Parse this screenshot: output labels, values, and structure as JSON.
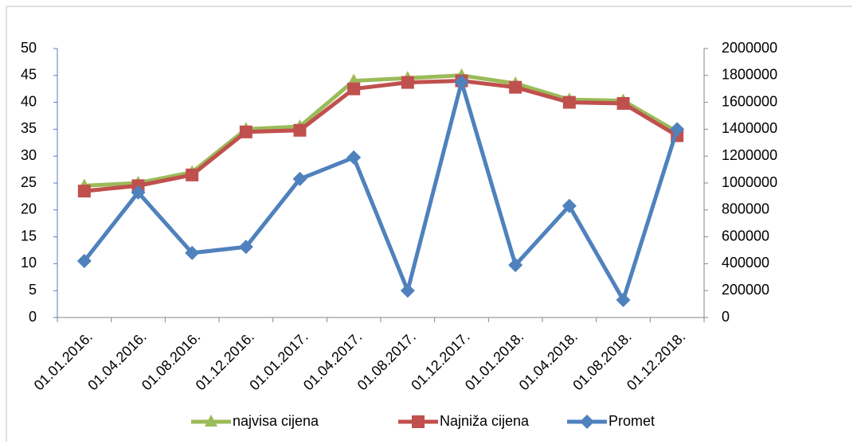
{
  "chart_data": {
    "type": "line",
    "categories": [
      "01.01.2016.",
      "01.04.2016.",
      "01.08.2016.",
      "01.12.2016.",
      "01.01.2017.",
      "01.04.2017.",
      "01.08.2017.",
      "01.12.2017.",
      "01.01.2018.",
      "01.04.2018.",
      "01.08.2018.",
      "01.12.2018."
    ],
    "series": [
      {
        "name": "najvisa cijena",
        "color": "#9bbb59",
        "marker": "triangle",
        "values": [
          24.5,
          25,
          27,
          35,
          35.5,
          44,
          44.5,
          45,
          43.5,
          40.5,
          40.3,
          34.5
        ]
      },
      {
        "name": "Najniža cijena",
        "color": "#c0504d",
        "marker": "square",
        "values": [
          23.5,
          24.5,
          26.5,
          34.5,
          34.8,
          42.5,
          43.7,
          44,
          42.8,
          40,
          39.8,
          33.8
        ]
      },
      {
        "name": "Promet",
        "color": "#4f81bd",
        "marker": "diamond",
        "axis": "y2",
        "values": [
          420000,
          930000,
          480000,
          525000,
          1030000,
          1190000,
          200000,
          1750000,
          390000,
          830000,
          130000,
          1400000
        ]
      }
    ],
    "ylim": [
      0,
      50
    ],
    "yticks": [
      0,
      5,
      10,
      15,
      20,
      25,
      30,
      35,
      40,
      45,
      50
    ],
    "y2lim": [
      0,
      2000000
    ],
    "y2ticks": [
      0,
      200000,
      400000,
      600000,
      800000,
      1000000,
      1200000,
      1400000,
      1600000,
      1800000,
      2000000
    ],
    "legend": "bottom"
  }
}
